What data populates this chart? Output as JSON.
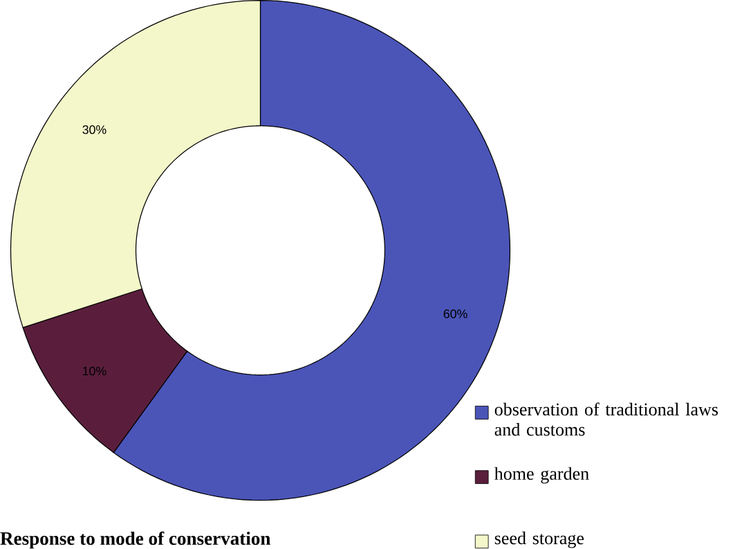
{
  "chart_data": {
    "type": "donut",
    "categories": [
      "observation of traditional laws and customs",
      "home garden",
      "seed storage"
    ],
    "values": [
      60,
      10,
      30
    ],
    "colors": [
      "#4b55b8",
      "#5a1e3c",
      "#f4f7c9"
    ],
    "value_labels": [
      "60%",
      "10%",
      "30%"
    ],
    "legend": "bottom right",
    "annotations": [
      "Response to mode of conservation"
    ]
  }
}
